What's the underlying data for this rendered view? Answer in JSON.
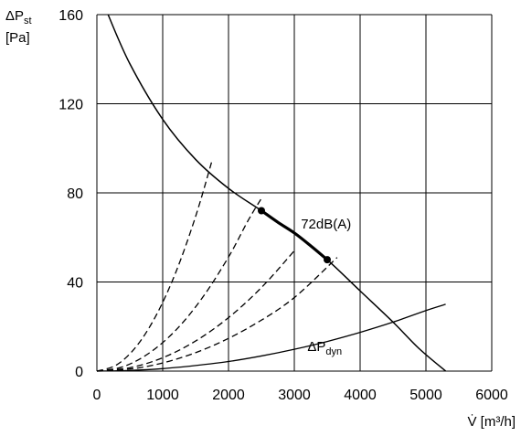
{
  "chart_data": {
    "type": "line",
    "ylabel": "ΔP",
    "ylabel_sub": "st",
    "ylabel_unit": "[Pa]",
    "xlabel": "V̇ [m³/h]",
    "xlim": [
      0,
      6000
    ],
    "ylim": [
      0,
      160
    ],
    "grid": true,
    "x_ticks": [
      0,
      1000,
      2000,
      3000,
      4000,
      5000,
      6000
    ],
    "y_ticks": [
      0,
      40,
      80,
      120,
      160
    ],
    "x_tick_labels": [
      "0",
      "1000",
      "2000",
      "3000",
      "4000",
      "5000",
      "6000"
    ],
    "y_tick_labels": [
      "0",
      "40",
      "80",
      "120",
      "160"
    ],
    "series": [
      {
        "style": "solid",
        "x": [
          170,
          500,
          1000,
          1500,
          2000,
          2500,
          3000,
          3500,
          4000,
          4500,
          4900,
          5300
        ],
        "y": [
          160,
          138,
          113,
          95,
          82,
          72,
          62,
          50,
          36,
          22,
          10,
          0
        ]
      },
      {
        "name": "ΔP",
        "name_sub": "dyn",
        "style": "solid-thin",
        "x": [
          0,
          500,
          1000,
          1500,
          2000,
          2500,
          3000,
          3500,
          4000,
          4500,
          5000,
          5300
        ],
        "y": [
          0,
          0.3,
          1.1,
          2.5,
          4.3,
          6.8,
          9.8,
          13.3,
          17.4,
          22.0,
          27.2,
          30.0
        ]
      },
      {
        "style": "dashed",
        "x": [
          0,
          300,
          600,
          900,
          1200,
          1500,
          1750
        ],
        "y": [
          0,
          2.8,
          11.1,
          25.0,
          44.4,
          69.4,
          94.5
        ]
      },
      {
        "style": "dashed",
        "x": [
          0,
          400,
          800,
          1200,
          1600,
          2000,
          2300,
          2500
        ],
        "y": [
          0,
          2.0,
          8.2,
          18.4,
          32.8,
          51.2,
          67.7,
          77.5
        ]
      },
      {
        "style": "dashed",
        "x": [
          0,
          500,
          1000,
          1500,
          2000,
          2500,
          3000
        ],
        "y": [
          0,
          1.5,
          6.0,
          13.5,
          24.0,
          37.5,
          54.0
        ]
      },
      {
        "style": "dashed",
        "x": [
          0,
          600,
          1200,
          1800,
          2400,
          3000,
          3650
        ],
        "y": [
          0,
          1.3,
          5.3,
          11.9,
          21.1,
          33.0,
          51.0
        ]
      },
      {
        "style": "bold",
        "x": [
          2500,
          2750,
          3000,
          3250,
          3500
        ],
        "y": [
          72,
          66.8,
          62,
          56.2,
          50
        ]
      }
    ],
    "points": [
      {
        "x": 2500,
        "y": 72
      },
      {
        "x": 3500,
        "y": 50
      }
    ],
    "annotations": [
      {
        "text": "72dB(A)",
        "x": 3100,
        "y": 64
      }
    ]
  }
}
